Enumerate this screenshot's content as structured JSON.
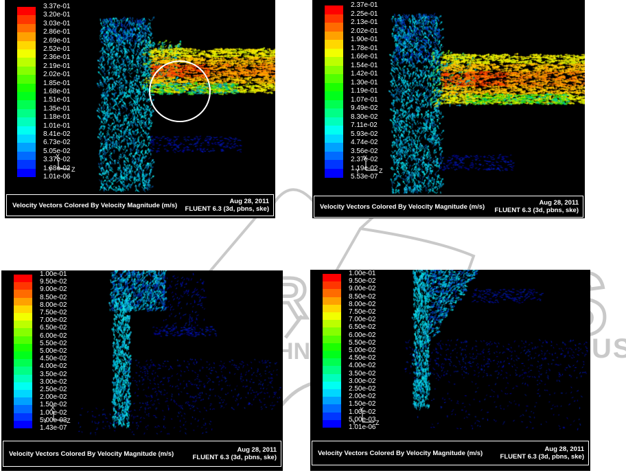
{
  "colors": {
    "page_background": "#ffffff",
    "panel_background": "#000000",
    "caption_text": "#ffffff",
    "caption_border": "#ffffff",
    "watermark_gray": "#c9c9c9",
    "annotation_circle": "#ffffff"
  },
  "watermark": {
    "big_outline_letter": "S",
    "outline_letter_left": "R",
    "tagline_fragment_left": "HN",
    "tagline_fragment_right": "US"
  },
  "panels": [
    {
      "id": "top-left",
      "caption": "Velocity Vectors Colored By Velocity Magnitude (m/s)",
      "date": "Aug 28, 2011",
      "solver": "FLUENT 6.3 (3d, pbns, ske)",
      "axes": {
        "x": "X",
        "y": "Y",
        "z": "Z"
      },
      "annotation": "white circle highlighting junction recirculation zone",
      "levels": [
        "3.37e-01",
        "3.20e-01",
        "3.03e-01",
        "2.86e-01",
        "2.69e-01",
        "2.52e-01",
        "2.36e-01",
        "2.19e-01",
        "2.02e-01",
        "1.85e-01",
        "1.68e-01",
        "1.51e-01",
        "1.35e-01",
        "1.18e-01",
        "1.01e-01",
        "8.41e-02",
        "6.73e-02",
        "5.05e-02",
        "3.37e-02",
        "1.68e-02",
        "1.01e-06"
      ]
    },
    {
      "id": "top-right",
      "caption": "Velocity Vectors Colored By Velocity Magnitude (m/s)",
      "date": "Aug 28, 2011",
      "solver": "FLUENT 6.3 (3d, pbns, ske)",
      "axes": {
        "x": "X",
        "y": "Y",
        "z": "Z"
      },
      "annotation": "",
      "levels": [
        "2.37e-01",
        "2.25e-01",
        "2.13e-01",
        "2.02e-01",
        "1.90e-01",
        "1.78e-01",
        "1.66e-01",
        "1.54e-01",
        "1.42e-01",
        "1.30e-01",
        "1.19e-01",
        "1.07e-01",
        "9.49e-02",
        "8.30e-02",
        "7.11e-02",
        "5.93e-02",
        "4.74e-02",
        "3.56e-02",
        "2.37e-02",
        "1.19e-02",
        "5.53e-07"
      ]
    },
    {
      "id": "bottom-left",
      "caption": "Velocity Vectors Colored By Velocity Magnitude (m/s)",
      "date": "Aug 28, 2011",
      "solver": "FLUENT 6.3 (3d, pbns, ske)",
      "axes": {
        "x": "X",
        "y": "Y",
        "z": "Z"
      },
      "annotation": "",
      "levels": [
        "1.00e-01",
        "9.50e-02",
        "9.00e-02",
        "8.50e-02",
        "8.00e-02",
        "7.50e-02",
        "7.00e-02",
        "6.50e-02",
        "6.00e-02",
        "5.50e-02",
        "5.00e-02",
        "4.50e-02",
        "4.00e-02",
        "3.50e-02",
        "3.00e-02",
        "2.50e-02",
        "2.00e-02",
        "1.50e-02",
        "1.00e-02",
        "5.00e-03",
        "1.43e-07"
      ]
    },
    {
      "id": "bottom-right",
      "caption": "Velocity Vectors Colored By Velocity Magnitude (m/s)",
      "date": "Aug 28, 2011",
      "solver": "FLUENT 6.3 (3d, pbns, ske)",
      "axes": {
        "x": "X",
        "y": "Y",
        "z": "Z"
      },
      "annotation": "",
      "levels": [
        "1.00e-01",
        "9.50e-02",
        "9.00e-02",
        "8.50e-02",
        "8.00e-02",
        "7.50e-02",
        "7.00e-02",
        "6.50e-02",
        "6.00e-02",
        "5.50e-02",
        "5.00e-02",
        "4.50e-02",
        "4.00e-02",
        "3.50e-02",
        "3.00e-02",
        "2.50e-02",
        "2.00e-02",
        "1.50e-02",
        "1.00e-02",
        "5.00e-03",
        "1.01e-06"
      ]
    }
  ],
  "chart_data": [
    {
      "panel": "top-left",
      "type": "vector-field",
      "title": "Velocity Vectors Colored By Velocity Magnitude (m/s)",
      "date": "Aug 28, 2011",
      "solver": "FLUENT 6.3 (3d, pbns, ske)",
      "unit": "m/s",
      "colorbar_min": 1.01e-06,
      "colorbar_max": 0.337,
      "colorbar_levels": [
        0.337,
        0.32,
        0.303,
        0.286,
        0.269,
        0.252,
        0.236,
        0.219,
        0.202,
        0.185,
        0.168,
        0.151,
        0.135,
        0.118,
        0.101,
        0.0841,
        0.0673,
        0.0505,
        0.0337,
        0.0168,
        1.01e-06
      ],
      "colormap": "rainbow red(high) to blue(low)",
      "legend_position": "left",
      "scene": "vertical riser of cyan upward vectors joining a horizontal channel of orange/yellow rightward vectors (tee junction); white circle annotation at the junction underside"
    },
    {
      "panel": "top-right",
      "type": "vector-field",
      "title": "Velocity Vectors Colored By Velocity Magnitude (m/s)",
      "date": "Aug 28, 2011",
      "solver": "FLUENT 6.3 (3d, pbns, ske)",
      "unit": "m/s",
      "colorbar_min": 5.53e-07,
      "colorbar_max": 0.237,
      "colorbar_levels": [
        0.237,
        0.225,
        0.213,
        0.202,
        0.19,
        0.178,
        0.166,
        0.154,
        0.142,
        0.13,
        0.119,
        0.107,
        0.0949,
        0.083,
        0.0711,
        0.0593,
        0.0474,
        0.0356,
        0.0237,
        0.0119,
        5.53e-07
      ],
      "colormap": "rainbow red(high) to blue(low)",
      "legend_position": "left",
      "scene": "vertical riser of cyan/dark-blue upward vectors joining a horizontal channel of orange/yellow rightward vectors (tee junction)"
    },
    {
      "panel": "bottom-left",
      "type": "vector-field",
      "title": "Velocity Vectors Colored By Velocity Magnitude (m/s)",
      "date": "Aug 28, 2011",
      "solver": "FLUENT 6.3 (3d, pbns, ske)",
      "unit": "m/s",
      "colorbar_min": 1.43e-07,
      "colorbar_max": 0.1,
      "colorbar_levels": [
        0.1,
        0.095,
        0.09,
        0.085,
        0.08,
        0.075,
        0.07,
        0.065,
        0.06,
        0.055,
        0.05,
        0.045,
        0.04,
        0.035,
        0.03,
        0.025,
        0.02,
        0.015,
        0.01,
        0.005,
        1.43e-07
      ],
      "colormap": "rainbow red(high) to blue(low)",
      "legend_position": "left",
      "scene": "narrow vertical cyan jet widening into an upward fan; faint dark-blue low-velocity field elsewhere"
    },
    {
      "panel": "bottom-right",
      "type": "vector-field",
      "title": "Velocity Vectors Colored By Velocity Magnitude (m/s)",
      "date": "Aug 28, 2011",
      "solver": "FLUENT 6.3 (3d, pbns, ske)",
      "unit": "m/s",
      "colorbar_min": 1.01e-06,
      "colorbar_max": 0.1,
      "colorbar_levels": [
        0.1,
        0.095,
        0.09,
        0.085,
        0.08,
        0.075,
        0.07,
        0.065,
        0.06,
        0.055,
        0.05,
        0.045,
        0.04,
        0.035,
        0.03,
        0.025,
        0.02,
        0.015,
        0.01,
        0.005,
        1.01e-06
      ],
      "colormap": "rainbow red(high) to blue(low)",
      "legend_position": "left",
      "scene": "narrow vertical cyan jet with fan spilling down-right at its top; faint dark-blue low-velocity bands to the right"
    }
  ]
}
